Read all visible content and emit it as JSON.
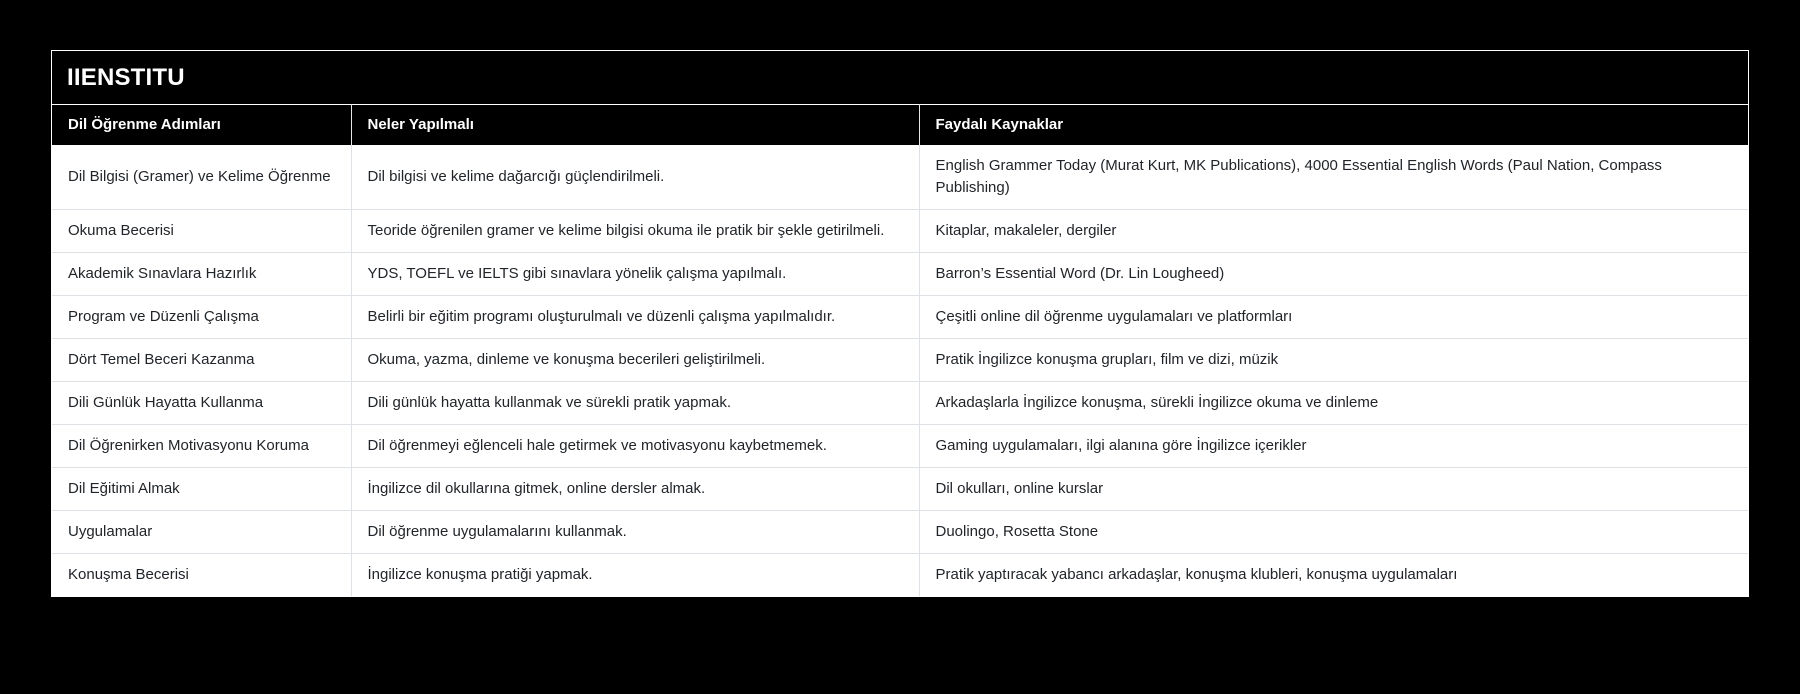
{
  "page": {
    "background_color": "#000000",
    "card_border_color": "#ffffff",
    "header_bg_color": "#000000",
    "header_text_color": "#ffffff",
    "body_bg_color": "#ffffff",
    "body_text_color": "#212529",
    "divider_color": "#dee2e6"
  },
  "card": {
    "title": "IIENSTITU"
  },
  "table": {
    "columns": [
      "Dil Öğrenme Adımları",
      "Neler Yapılmalı",
      "Faydalı Kaynaklar"
    ],
    "rows": [
      {
        "step": "Dil Bilgisi (Gramer) ve Kelime Öğrenme",
        "action": "Dil bilgisi ve kelime dağarcığı güçlendirilmeli.",
        "resources": "English Grammer Today (Murat Kurt, MK Publications), 4000 Essential English Words (Paul Nation, Compass Publishing)"
      },
      {
        "step": "Okuma Becerisi",
        "action": "Teoride öğrenilen gramer ve kelime bilgisi okuma ile pratik bir şekle getirilmeli.",
        "resources": "Kitaplar, makaleler, dergiler"
      },
      {
        "step": "Akademik Sınavlara Hazırlık",
        "action": "YDS, TOEFL ve IELTS gibi sınavlara yönelik çalışma yapılmalı.",
        "resources": "Barron’s Essential Word (Dr. Lin Lougheed)"
      },
      {
        "step": "Program ve Düzenli Çalışma",
        "action": "Belirli bir eğitim programı oluşturulmalı ve düzenli çalışma yapılmalıdır.",
        "resources": "Çeşitli online dil öğrenme uygulamaları ve platformları"
      },
      {
        "step": "Dört Temel Beceri Kazanma",
        "action": "Okuma, yazma, dinleme ve konuşma becerileri geliştirilmeli.",
        "resources": "Pratik İngilizce konuşma grupları, film ve dizi, müzik"
      },
      {
        "step": "Dili Günlük Hayatta Kullanma",
        "action": "Dili günlük hayatta kullanmak ve sürekli pratik yapmak.",
        "resources": "Arkadaşlarla İngilizce konuşma, sürekli İngilizce okuma ve dinleme"
      },
      {
        "step": "Dil Öğrenirken Motivasyonu Koruma",
        "action": "Dil öğrenmeyi eğlenceli hale getirmek ve motivasyonu kaybetmemek.",
        "resources": "Gaming uygulamaları, ilgi alanına göre İngilizce içerikler"
      },
      {
        "step": "Dil Eğitimi Almak",
        "action": "İngilizce dil okullarına gitmek, online dersler almak.",
        "resources": "Dil okulları, online kurslar"
      },
      {
        "step": "Uygulamalar",
        "action": "Dil öğrenme uygulamalarını kullanmak.",
        "resources": "Duolingo, Rosetta Stone"
      },
      {
        "step": "Konuşma Becerisi",
        "action": "İngilizce konuşma pratiği yapmak.",
        "resources": "Pratik yaptıracak yabancı arkadaşlar, konuşma klubleri, konuşma uygulamaları"
      }
    ]
  }
}
